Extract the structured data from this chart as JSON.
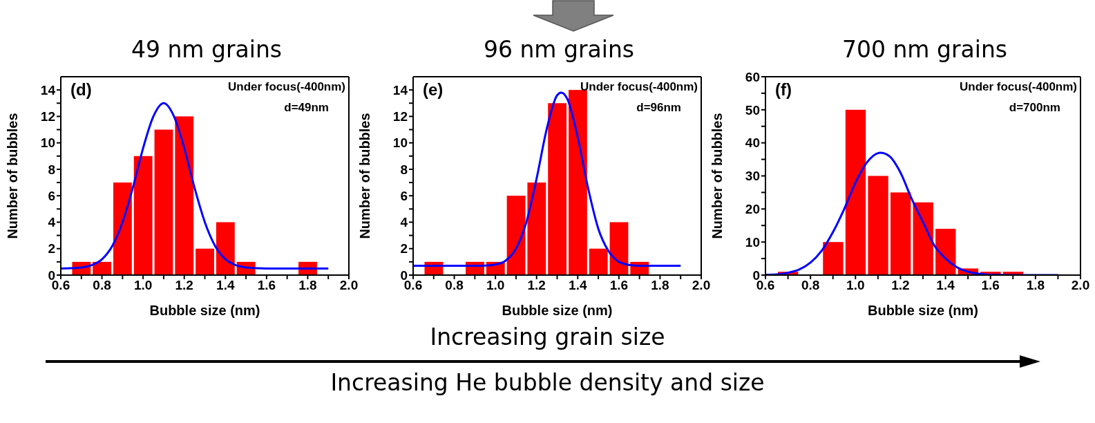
{
  "chart_data": [
    {
      "type": "histogram",
      "title": "49 nm grains",
      "xlabel": "Bubble size (nm)",
      "ylabel": "Number of bubbles",
      "annotations": [
        "(d)",
        "Under focus(-400nm)",
        "d=49nm"
      ],
      "xticks": [
        0.6,
        {
          "value": 0.7,
          "label": null
        },
        0.8,
        {
          "value": 0.9,
          "label": null
        },
        {
          "value": 1,
          "label": "1.0"
        },
        {
          "value": 1.1,
          "label": null
        },
        1.2,
        {
          "value": 1.3,
          "label": null
        },
        1.4,
        {
          "value": 1.5,
          "label": null
        },
        1.6,
        {
          "value": 1.7,
          "label": null
        },
        1.8,
        {
          "value": 1.9,
          "label": null
        },
        {
          "value": 2,
          "label": "2.0"
        }
      ],
      "bins": [
        0.65,
        0.75,
        0.85,
        0.95,
        1.05,
        1.15,
        1.25,
        1.35,
        1.45,
        1.55,
        1.65,
        1.75,
        1.85
      ],
      "values": [
        1,
        1,
        7,
        9,
        11,
        12,
        2,
        4,
        1,
        0,
        0,
        1
      ],
      "color": "#ff0000",
      "series": [
        {
          "type": "line",
          "color": "#0000ff",
          "x": [
            0.6,
            0.65,
            0.7,
            0.75,
            0.8,
            0.85,
            0.9,
            0.95,
            1.0,
            1.05,
            1.1,
            1.15,
            1.2,
            1.25,
            1.3,
            1.35,
            1.4,
            1.45,
            1.5,
            1.55,
            1.6,
            1.7,
            1.8,
            1.9
          ],
          "values": [
            0.5,
            0.52,
            0.58,
            0.75,
            1.2,
            2.2,
            4.0,
            6.6,
            9.6,
            12.0,
            13.0,
            12.0,
            9.6,
            6.6,
            4.0,
            2.2,
            1.2,
            0.75,
            0.58,
            0.52,
            0.5,
            0.5,
            0.5,
            0.5
          ]
        }
      ],
      "xlim": [
        0.6,
        2.0
      ],
      "ylim": [
        0,
        15
      ],
      "yticks": [
        0,
        {
          "value": 1,
          "label": null
        },
        2,
        {
          "value": 3,
          "label": null
        },
        4,
        {
          "value": 5,
          "label": null
        },
        6,
        {
          "value": 7,
          "label": null
        },
        8,
        {
          "value": 9,
          "label": null
        },
        10,
        {
          "value": 11,
          "label": null
        },
        12,
        {
          "value": 13,
          "label": null
        },
        14
      ]
    },
    {
      "type": "histogram",
      "title": "96 nm grains",
      "xlabel": "Bubble size (nm)",
      "ylabel": "Number of bubbles",
      "annotations": [
        "(e)",
        "Under focus(-400nm)",
        "d=96nm"
      ],
      "xticks": [
        0.6,
        {
          "value": 0.7,
          "label": null
        },
        0.8,
        {
          "value": 0.9,
          "label": null
        },
        {
          "value": 1,
          "label": "1.0"
        },
        {
          "value": 1.1,
          "label": null
        },
        1.2,
        {
          "value": 1.3,
          "label": null
        },
        1.4,
        {
          "value": 1.5,
          "label": null
        },
        1.6,
        {
          "value": 1.7,
          "label": null
        },
        1.8,
        {
          "value": 1.9,
          "label": null
        },
        {
          "value": 2,
          "label": "2.0"
        }
      ],
      "bins": [
        0.65,
        0.75,
        0.85,
        0.95,
        1.05,
        1.15,
        1.25,
        1.35,
        1.45,
        1.55,
        1.65,
        1.75
      ],
      "values": [
        1,
        0,
        1,
        1,
        6,
        7,
        13,
        14,
        2,
        4,
        1
      ],
      "color": "#ff0000",
      "series": [
        {
          "type": "line",
          "color": "#0000ff",
          "x": [
            0.6,
            0.7,
            0.8,
            0.9,
            0.95,
            1.0,
            1.05,
            1.1,
            1.15,
            1.2,
            1.25,
            1.3,
            1.32,
            1.35,
            1.4,
            1.45,
            1.5,
            1.55,
            1.6,
            1.65,
            1.7,
            1.8,
            1.9
          ],
          "values": [
            0.7,
            0.7,
            0.7,
            0.7,
            0.72,
            0.8,
            1.1,
            2.0,
            4.0,
            7.3,
            11.1,
            13.6,
            13.8,
            13.3,
            10.4,
            6.6,
            3.5,
            1.8,
            1.0,
            0.77,
            0.7,
            0.7,
            0.7
          ]
        }
      ],
      "xlim": [
        0.6,
        2.0
      ],
      "ylim": [
        0,
        15
      ],
      "yticks": [
        0,
        {
          "value": 1,
          "label": null
        },
        2,
        {
          "value": 3,
          "label": null
        },
        4,
        {
          "value": 5,
          "label": null
        },
        6,
        {
          "value": 7,
          "label": null
        },
        8,
        {
          "value": 9,
          "label": null
        },
        10,
        {
          "value": 11,
          "label": null
        },
        12,
        {
          "value": 13,
          "label": null
        },
        14
      ]
    },
    {
      "type": "histogram",
      "title": "700 nm grains",
      "xlabel": "Bubble size (nm)",
      "ylabel": "Number of bubbles",
      "annotations": [
        "(f)",
        "Under focus(-400nm)",
        "d=700nm"
      ],
      "xticks": [
        0.6,
        {
          "value": 0.7,
          "label": null
        },
        0.8,
        {
          "value": 0.9,
          "label": null
        },
        {
          "value": 1,
          "label": "1.0"
        },
        {
          "value": 1.1,
          "label": null
        },
        1.2,
        {
          "value": 1.3,
          "label": null
        },
        1.4,
        {
          "value": 1.5,
          "label": null
        },
        1.6,
        {
          "value": 1.7,
          "label": null
        },
        1.8,
        {
          "value": 1.9,
          "label": null
        },
        {
          "value": 2,
          "label": "2.0"
        }
      ],
      "bins": [
        0.65,
        0.75,
        0.85,
        0.95,
        1.05,
        1.15,
        1.25,
        1.35,
        1.45,
        1.55,
        1.65,
        1.75
      ],
      "values": [
        1,
        0,
        10,
        50,
        30,
        25,
        22,
        14,
        2,
        1,
        1
      ],
      "color": "#ff0000",
      "series": [
        {
          "type": "line",
          "color": "#0000ff",
          "x": [
            0.6,
            0.65,
            0.7,
            0.75,
            0.8,
            0.85,
            0.9,
            0.95,
            1.0,
            1.05,
            1.11,
            1.15,
            1.2,
            1.25,
            1.3,
            1.35,
            1.4,
            1.45,
            1.5,
            1.55,
            1.6,
            1.7,
            1.8,
            1.9
          ],
          "values": [
            0.1,
            0.2,
            0.7,
            1.7,
            3.8,
            7.4,
            13,
            20,
            28,
            34,
            37,
            36,
            31,
            23,
            16,
            9,
            5,
            2.4,
            1.0,
            0.4,
            0.1,
            0,
            0,
            0
          ]
        }
      ],
      "xlim": [
        0.6,
        2.0
      ],
      "ylim": [
        0,
        60
      ],
      "yticks": [
        0,
        {
          "value": 5,
          "label": null
        },
        10,
        {
          "value": 15,
          "label": null
        },
        20,
        {
          "value": 25,
          "label": null
        },
        30,
        {
          "value": 35,
          "label": null
        },
        40,
        {
          "value": 45,
          "label": null
        },
        50,
        {
          "value": 55,
          "label": null
        },
        60
      ]
    },
    {
      "type": "other",
      "annotations": [
        "Increasing grain size",
        "Increasing He bubble density and size"
      ]
    }
  ]
}
